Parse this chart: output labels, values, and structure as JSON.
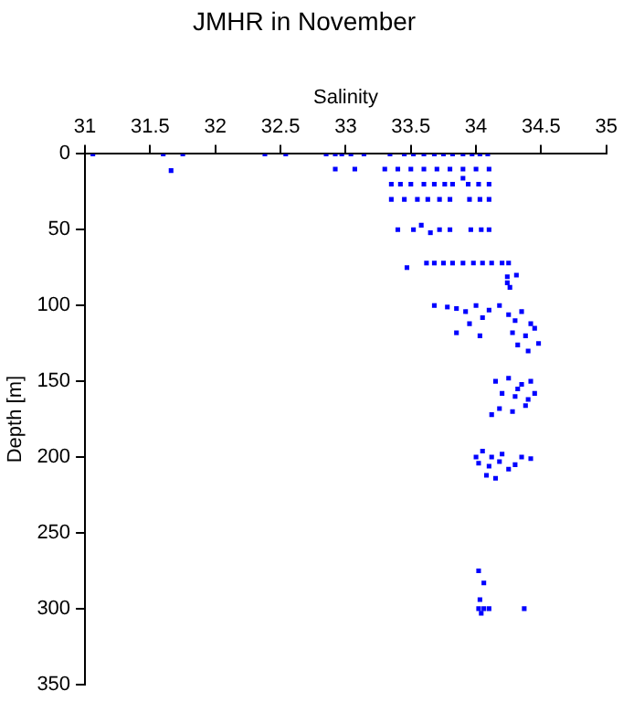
{
  "chart_data": {
    "type": "scatter",
    "title": "JMHR in November",
    "xlabel": "Salinity",
    "ylabel": "Depth [m]",
    "xlim": [
      31,
      35
    ],
    "xticks": [
      31,
      31.5,
      32,
      32.5,
      33,
      33.5,
      34,
      34.5,
      35
    ],
    "ylim": [
      350,
      0
    ],
    "yticks": [
      0,
      50,
      100,
      150,
      200,
      250,
      300,
      350
    ],
    "grid": false,
    "legend": false,
    "marker": "square",
    "series": [
      {
        "color": "#0000ff",
        "x": [
          31.06,
          31.6,
          31.75,
          32.38,
          32.54,
          32.85,
          32.92,
          32.97,
          33.04,
          33.14,
          33.34,
          33.45,
          33.52,
          33.6,
          33.68,
          33.75,
          33.82,
          33.9,
          33.97,
          34.03,
          34.09,
          31.66,
          32.92,
          33.07,
          33.3,
          33.4,
          33.5,
          33.6,
          33.7,
          33.8,
          33.9,
          34.0,
          34.1,
          33.9,
          33.35,
          33.42,
          33.5,
          33.6,
          33.68,
          33.76,
          33.82,
          33.94,
          34.02,
          34.1,
          33.35,
          33.45,
          33.55,
          33.63,
          33.72,
          33.8,
          33.95,
          34.03,
          34.1,
          33.4,
          33.52,
          33.58,
          33.65,
          33.72,
          33.8,
          33.96,
          34.04,
          34.1,
          33.47,
          33.62,
          33.68,
          33.75,
          33.82,
          33.9,
          33.98,
          34.05,
          34.12,
          34.2,
          34.25,
          34.24,
          34.31,
          34.24,
          34.26,
          33.68,
          33.78,
          33.85,
          33.92,
          34.0,
          34.05,
          33.95,
          34.1,
          34.18,
          34.25,
          34.3,
          34.35,
          34.42,
          34.28,
          34.38,
          34.45,
          34.32,
          34.4,
          34.48,
          33.85,
          34.03,
          34.15,
          34.25,
          34.35,
          34.42,
          34.2,
          34.3,
          34.4,
          34.18,
          34.28,
          34.38,
          34.45,
          34.12,
          34.32,
          34.05,
          34.2,
          34.35,
          34.02,
          34.1,
          34.18,
          34.25,
          34.3,
          34.08,
          34.15,
          34.0,
          34.42,
          34.12,
          34.02,
          34.06,
          34.03,
          34.02,
          34.06,
          34.1,
          34.37,
          34.04
        ],
        "values": [
          0,
          0,
          0,
          0,
          0,
          0,
          0,
          0,
          0,
          0,
          0,
          0,
          0,
          0,
          0,
          0,
          0,
          0,
          0,
          0,
          0,
          11,
          10,
          10,
          10,
          10,
          10,
          10,
          10,
          10,
          10,
          10,
          10,
          16,
          20,
          20,
          20,
          20,
          20,
          20,
          20,
          20,
          20,
          20,
          30,
          30,
          30,
          30,
          30,
          30,
          30,
          30,
          30,
          50,
          50,
          47,
          52,
          50,
          50,
          50,
          50,
          50,
          75,
          72,
          72,
          72,
          72,
          72,
          72,
          72,
          72,
          72,
          72,
          81,
          80,
          85,
          88,
          100,
          101,
          102,
          104,
          100,
          108,
          112,
          103,
          100,
          106,
          110,
          104,
          112,
          118,
          120,
          115,
          126,
          130,
          125,
          118,
          120,
          150,
          148,
          152,
          150,
          158,
          160,
          162,
          168,
          170,
          166,
          158,
          172,
          155,
          196,
          198,
          200,
          204,
          206,
          203,
          208,
          205,
          212,
          214,
          200,
          201,
          200,
          275,
          283,
          294,
          300,
          300,
          300,
          300,
          303
        ]
      }
    ]
  }
}
